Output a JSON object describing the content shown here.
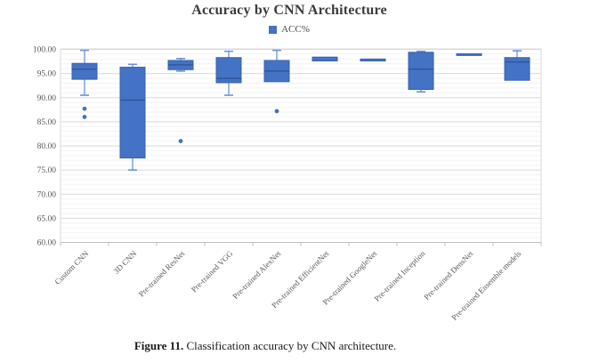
{
  "header": {
    "title": "Accuracy by CNN Architecture"
  },
  "legend": {
    "label": "ACC%"
  },
  "caption": {
    "label": "Figure 11.",
    "text": " Classification accuracy by CNN architecture."
  },
  "chart_data": {
    "type": "boxplot",
    "title": "Accuracy by CNN Architecture",
    "series_name": "ACC%",
    "xlabel": "",
    "ylabel": "",
    "ylim": [
      60,
      100
    ],
    "ytick_step": 5,
    "minor_unit": 1,
    "ytick_format_decimals": 2,
    "grid": true,
    "legend_position": "top-center",
    "colors": {
      "box_fill": "#4472C4",
      "box_border": "#3A62AD",
      "median": "#2E5395",
      "whisker": "#6B93D6",
      "outlier": "#4472C4",
      "grid_major": "#D9D9D9",
      "grid_minor": "#F2F2F2",
      "axis_line": "#BFBFBF",
      "axis_text": "#595959",
      "legend_swatch": "#4472C4"
    },
    "categories": [
      "Custom CNN",
      "3D CNN",
      "Pre-trained ResNet",
      "Pre-trained VGG",
      "Pre-trained AlexNet",
      "Pre-trained EfficientNet",
      "Pre-trained GoogleNet",
      "Pre-trained Inception",
      "Pre-trained DensNet",
      "Pre-trained Ensemble models"
    ],
    "boxes": [
      {
        "category": "Custom CNN",
        "whisker_low": 90.5,
        "q1": 93.8,
        "median": 95.9,
        "q3": 97.1,
        "whisker_high": 99.8,
        "outliers": [
          87.7,
          86.0
        ]
      },
      {
        "category": "3D CNN",
        "whisker_low": 75.0,
        "q1": 77.5,
        "median": 89.5,
        "q3": 96.3,
        "whisker_high": 96.9,
        "outliers": []
      },
      {
        "category": "Pre-trained ResNet",
        "whisker_low": 95.5,
        "q1": 95.8,
        "median": 96.8,
        "q3": 97.7,
        "whisker_high": 98.1,
        "outliers": [
          81.0
        ]
      },
      {
        "category": "Pre-trained VGG",
        "whisker_low": 90.5,
        "q1": 93.1,
        "median": 94.0,
        "q3": 98.3,
        "whisker_high": 99.6,
        "outliers": []
      },
      {
        "category": "Pre-trained AlexNet",
        "whisker_low": 93.3,
        "q1": 93.3,
        "median": 95.5,
        "q3": 97.7,
        "whisker_high": 99.8,
        "outliers": [
          87.2
        ]
      },
      {
        "category": "Pre-trained EfficientNet",
        "whisker_low": 97.6,
        "q1": 97.6,
        "median": null,
        "q3": 98.4,
        "whisker_high": 98.4,
        "outliers": []
      },
      {
        "category": "Pre-trained GoogleNet",
        "whisker_low": 97.6,
        "q1": 97.6,
        "median": null,
        "q3": 98.0,
        "whisker_high": 98.0,
        "outliers": []
      },
      {
        "category": "Pre-trained Inception",
        "whisker_low": 91.2,
        "q1": 91.7,
        "median": 95.9,
        "q3": 99.4,
        "whisker_high": 99.6,
        "outliers": []
      },
      {
        "category": "Pre-trained DensNet",
        "whisker_low": 98.9,
        "q1": 98.9,
        "median": null,
        "q3": 99.1,
        "whisker_high": 99.1,
        "outliers": []
      },
      {
        "category": "Pre-trained Ensemble models",
        "whisker_low": 93.6,
        "q1": 93.6,
        "median": 97.4,
        "q3": 98.3,
        "whisker_high": 99.7,
        "outliers": []
      }
    ]
  }
}
